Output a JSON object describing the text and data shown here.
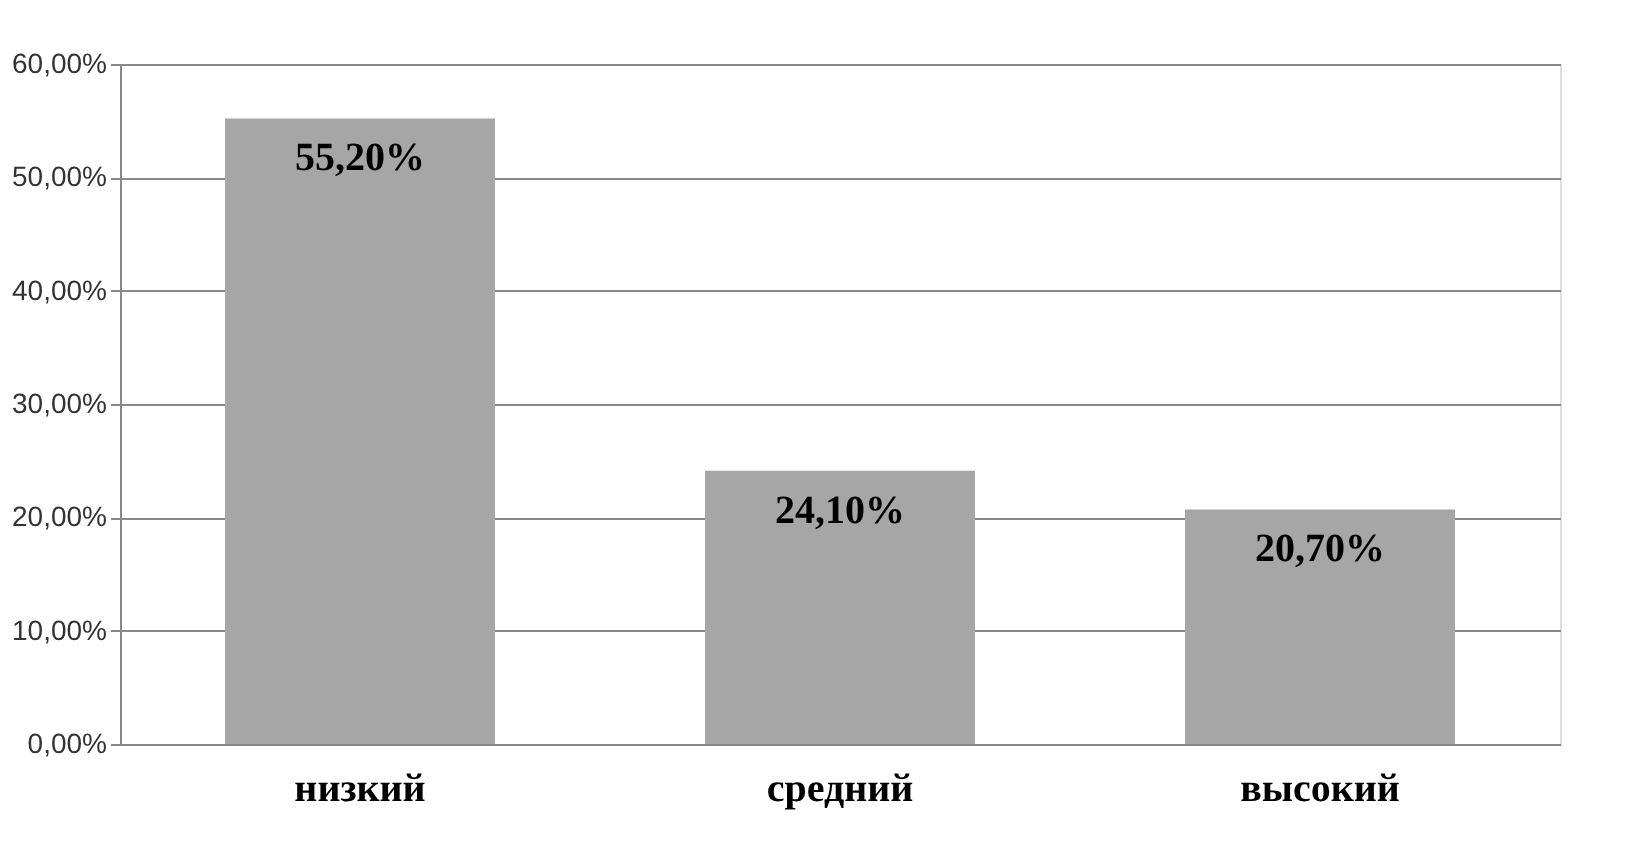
{
  "chart_data": {
    "type": "bar",
    "categories": [
      "низкий",
      "средний",
      "высокий"
    ],
    "values": [
      55.2,
      24.1,
      20.7
    ],
    "value_labels": [
      "55,20%",
      "24,10%",
      "20,70%"
    ],
    "color": "#a6a6a6",
    "ylim": [
      0,
      60
    ],
    "yticks": [
      {
        "value": 0,
        "label": "0,00%"
      },
      {
        "value": 10,
        "label": "10,00%"
      },
      {
        "value": 20,
        "label": "20,00%"
      },
      {
        "value": 30,
        "label": "30,00%"
      },
      {
        "value": 40,
        "label": "40,00%"
      },
      {
        "value": 50,
        "label": "50,00%"
      },
      {
        "value": 60,
        "label": "60,00%"
      }
    ],
    "grid": "y"
  }
}
